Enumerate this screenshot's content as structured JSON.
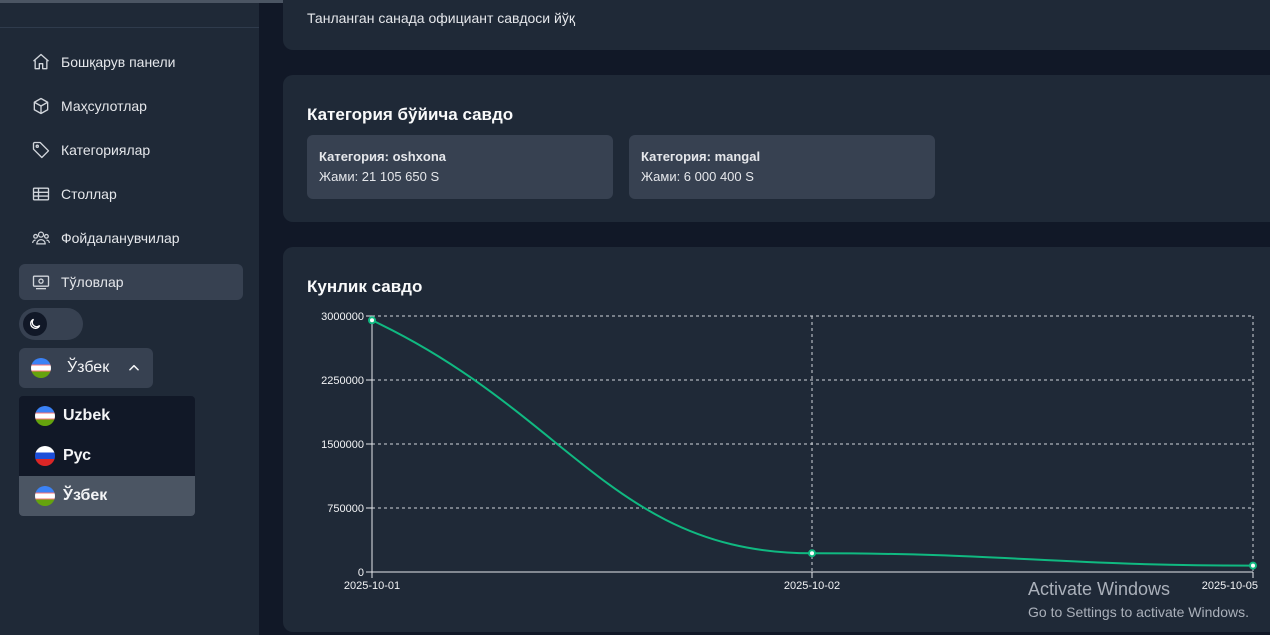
{
  "sidebar": {
    "items": [
      {
        "label": "Бошқарув панели",
        "icon": "home-icon"
      },
      {
        "label": "Маҳсулотлар",
        "icon": "cube-icon"
      },
      {
        "label": "Категориялар",
        "icon": "tag-icon"
      },
      {
        "label": "Столлар",
        "icon": "table-icon"
      },
      {
        "label": "Фойдаланувчилар",
        "icon": "users-icon"
      },
      {
        "label": "Тўловлар",
        "icon": "payment-icon"
      }
    ],
    "active_index": 5,
    "theme_toggle_icon": "moon-icon",
    "language": {
      "current": "Ўзбек",
      "options": [
        "Uzbek",
        "Рус",
        "Ўзбек"
      ],
      "selected_index": 2
    }
  },
  "waiter_card": {
    "message": "Танланган санада официант савдоси йўқ"
  },
  "category_card": {
    "title": "Категория бўйича савдо",
    "categories": [
      {
        "name": "Категория: oshxona",
        "total": "Жами: 21 105 650 S"
      },
      {
        "name": "Категория: mangal",
        "total": "Жами: 6 000 400 S"
      }
    ]
  },
  "daily_card": {
    "title": "Кунлик савдо"
  },
  "chart_data": {
    "type": "line",
    "x": [
      "2025-10-01",
      "2025-10-02",
      "2025-10-05"
    ],
    "series": [
      {
        "values": [
          2950000,
          220000,
          75000
        ],
        "color": "#10b981"
      }
    ],
    "yticks": [
      "0",
      "750000",
      "1500000",
      "2250000",
      "3000000"
    ],
    "ylim": [
      0,
      3000000
    ],
    "grid": true,
    "title": "",
    "xlabel": "",
    "ylabel": ""
  },
  "watermark": {
    "line1": "Activate Windows",
    "line2": "Go to Settings to activate Windows."
  }
}
